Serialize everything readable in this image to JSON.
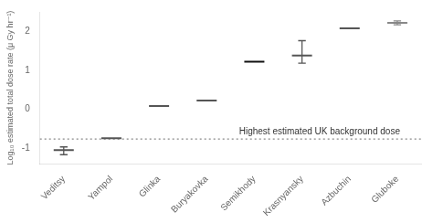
{
  "chart_data": {
    "type": "scatter",
    "marker": "line",
    "categories": [
      "Veditsy",
      "Yampol",
      "Glinka",
      "Buryakovka",
      "Semikhody",
      "Krasnyansky",
      "Azbuchin",
      "Gluboke"
    ],
    "values": [
      -1.05,
      -0.75,
      0.08,
      0.22,
      1.22,
      1.38,
      2.08,
      2.22
    ],
    "error_low": [
      0.12,
      0.0,
      0.0,
      0.0,
      0.0,
      0.2,
      0.0,
      0.05
    ],
    "error_high": [
      0.08,
      0.0,
      0.0,
      0.0,
      0.0,
      0.38,
      0.0,
      0.05
    ],
    "colors": [
      "#555555",
      "#555555",
      "#555555",
      "#555555",
      "#111111",
      "#555555",
      "#555555",
      "#888888"
    ],
    "ylabel": "Log₁₀ estimated total dose rate (μ Gy hr⁻¹)",
    "ylim": [
      -1.4,
      2.5
    ],
    "yticks": [
      -1,
      0,
      1,
      2
    ],
    "grid": false,
    "reference_line": {
      "value": -0.77,
      "label": "Highest estimated UK background dose",
      "color": "#888888",
      "line_style": "dotted"
    }
  }
}
